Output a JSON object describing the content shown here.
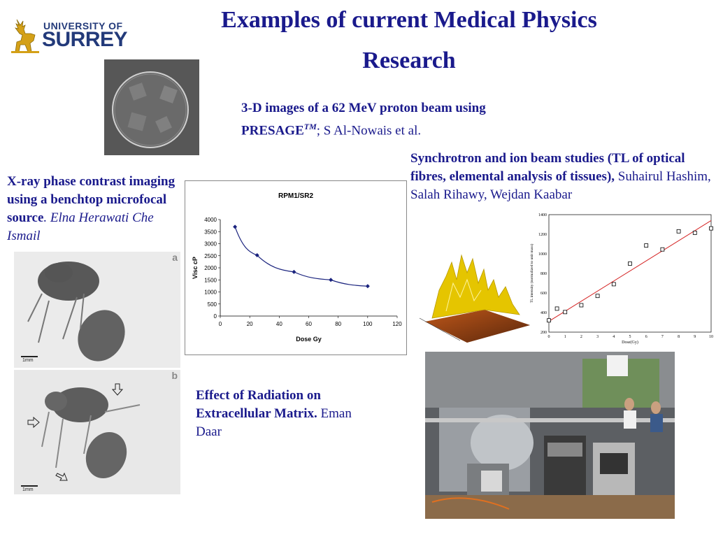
{
  "title": "Examples of current Medical Physics Research",
  "logo": {
    "line1": "UNIVERSITY OF",
    "line2": "SURREY",
    "icon": "stag-icon",
    "color": "#233a7a"
  },
  "captions": {
    "presage": {
      "bold": "3-D images of a 62 MeV proton beam using PRESAGE",
      "sup": "TM",
      "rest": "; S Al-Nowais et al."
    },
    "xray": {
      "bold": "X-ray phase contrast imaging using a benchtop microfocal source",
      "rest": ". Elna Herawati Che Ismail"
    },
    "synchrotron": {
      "bold": "Synchrotron and ion beam studies (TL of optical fibres, elemental analysis of tissues),",
      "rest": " Suhairul Hashim, Salah Rihawy, Wejdan Kaabar"
    },
    "ecm": {
      "bold": "Effect of Radiation on Extracellular Matrix.",
      "rest": " Eman Daar"
    }
  },
  "xray_images": {
    "label_a": "a",
    "label_b": "b",
    "scale": "1mm"
  },
  "chart_data": [
    {
      "type": "line",
      "title": "RPM1/SR2",
      "xlabel": "Dose Gy",
      "ylabel": "Visc cP",
      "x": [
        10,
        25,
        50,
        75,
        100
      ],
      "y": [
        3700,
        2520,
        1830,
        1500,
        1240
      ],
      "xlim": [
        0,
        120
      ],
      "ylim": [
        0,
        4000
      ],
      "xticks": [
        0,
        20,
        40,
        60,
        80,
        100,
        120
      ],
      "yticks": [
        0,
        500,
        1000,
        1500,
        2000,
        2500,
        3000,
        3500,
        4000
      ],
      "color": "#1a237e"
    },
    {
      "type": "scatter",
      "xlabel": "Dose(Gy)",
      "ylabel": "TL intensity (normalized to unit mass)",
      "x": [
        0,
        0.5,
        1,
        2,
        3,
        4,
        5,
        6,
        7,
        8,
        9,
        10
      ],
      "y": [
        320,
        440,
        405,
        475,
        570,
        690,
        900,
        1085,
        1045,
        1230,
        1215,
        1260
      ],
      "fit": {
        "x": [
          0,
          10
        ],
        "y": [
          310,
          1340
        ]
      },
      "xlim": [
        0,
        10
      ],
      "ylim": [
        200,
        1400
      ],
      "xticks": [
        0,
        1,
        2,
        3,
        4,
        5,
        6,
        7,
        8,
        9,
        10
      ],
      "yticks": [
        200,
        400,
        600,
        800,
        1000,
        1200,
        1400
      ],
      "fit_color": "#d42020"
    }
  ]
}
